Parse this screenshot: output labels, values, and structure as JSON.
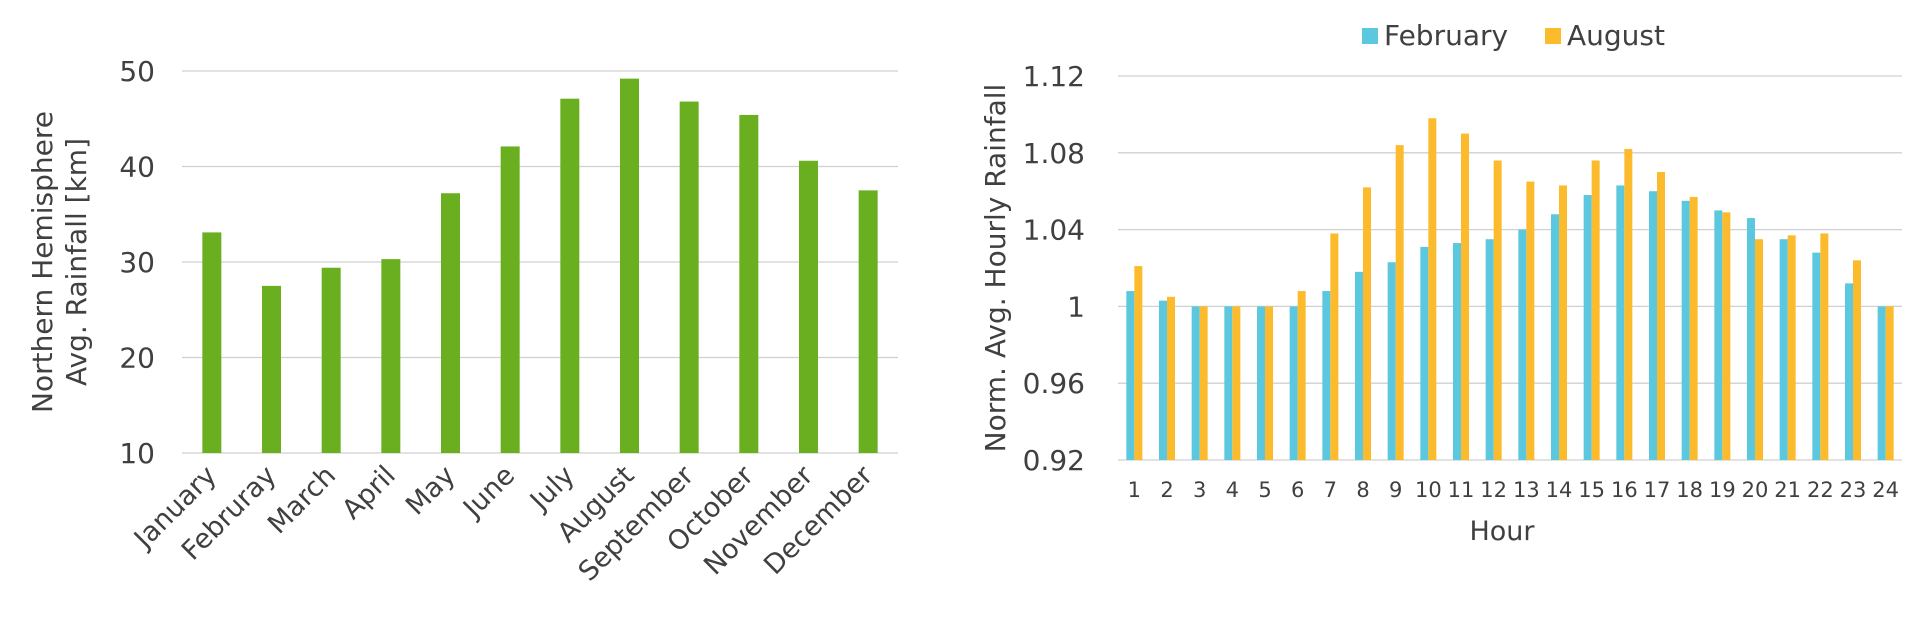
{
  "chart_data": [
    {
      "type": "bar",
      "title": "",
      "ylabel": "Northern Hemisphere\nAvg. Rainfall [km]",
      "xlabel": "",
      "ylim": [
        10,
        50
      ],
      "yticks": [
        10,
        20,
        30,
        40,
        50
      ],
      "grid": true,
      "categories": [
        "January",
        "Februray",
        "March",
        "April",
        "May",
        "June",
        "July",
        "August",
        "September",
        "October",
        "November",
        "December"
      ],
      "series": [
        {
          "name": "Avg. Rainfall",
          "color": "#6aaf1f",
          "values": [
            33.1,
            27.5,
            29.4,
            30.3,
            37.2,
            42.1,
            47.1,
            49.2,
            46.8,
            45.4,
            40.6,
            37.5
          ]
        }
      ]
    },
    {
      "type": "bar",
      "title": "",
      "ylabel": "Norm. Avg. Hourly Rainfall",
      "xlabel": "Hour",
      "ylim": [
        0.92,
        1.12
      ],
      "yticks": [
        "0.92",
        "0.96",
        "1",
        "1.04",
        "1.08",
        "1.12"
      ],
      "grid": true,
      "legend": "top",
      "categories": [
        "1",
        "2",
        "3",
        "4",
        "5",
        "6",
        "7",
        "8",
        "9",
        "10",
        "11",
        "12",
        "13",
        "14",
        "15",
        "16",
        "17",
        "18",
        "19",
        "20",
        "21",
        "22",
        "23",
        "24"
      ],
      "series": [
        {
          "name": "February",
          "color": "#5bc8e0",
          "values": [
            1.008,
            1.003,
            1.0,
            1.0,
            1.0,
            1.0,
            1.008,
            1.018,
            1.023,
            1.031,
            1.033,
            1.035,
            1.04,
            1.048,
            1.058,
            1.063,
            1.06,
            1.055,
            1.05,
            1.046,
            1.035,
            1.028,
            1.012,
            1.0
          ]
        },
        {
          "name": "August",
          "color": "#fbbb2d",
          "values": [
            1.021,
            1.005,
            1.0,
            1.0,
            1.0,
            1.008,
            1.038,
            1.062,
            1.084,
            1.098,
            1.09,
            1.076,
            1.065,
            1.063,
            1.076,
            1.082,
            1.07,
            1.057,
            1.049,
            1.035,
            1.037,
            1.038,
            1.024,
            1.0
          ]
        }
      ]
    }
  ]
}
